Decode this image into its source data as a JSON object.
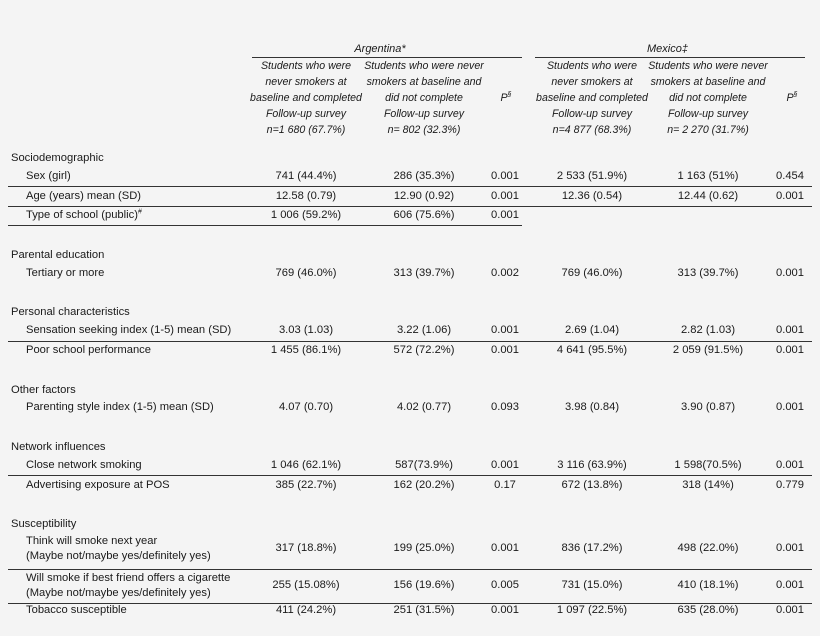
{
  "header": {
    "argentina": "Argentina*",
    "mexico": "Mexico‡",
    "arg_col1": [
      "Students who were",
      "never smokers at",
      "baseline and completed",
      "Follow-up survey",
      "n=1 680 (67.7%)"
    ],
    "arg_col2": [
      "Students who were never",
      "smokers at baseline and",
      "did not complete",
      "Follow-up survey",
      "n= 802 (32.3%)"
    ],
    "mex_col1": [
      "Students who were",
      "never smokers at",
      "baseline and completed",
      "Follow-up survey",
      "n=4 877 (68.3%)"
    ],
    "mex_col2": [
      "Students who were never",
      "smokers at baseline and",
      "did not complete",
      "Follow-up survey",
      "n= 2 270 (31.7%)"
    ],
    "p_label": "P",
    "p_sup": "§"
  },
  "sections": {
    "sociodemographic": "Sociodemographic",
    "parental_education": "Parental education",
    "personal": "Personal characteristics",
    "other": "Other factors",
    "network": "Network influences",
    "susceptibility": "Susceptibility"
  },
  "rows": [
    {
      "label": [
        "Sex (girl)"
      ],
      "sup": "",
      "a1": "741 (44.4%)",
      "a2": "286 (35.3%)",
      "ap": "0.001",
      "m1": "2 533 (51.9%)",
      "m2": "1 163 (51%)",
      "mp": "0.454"
    },
    {
      "label": [
        "Age (years) mean (SD)"
      ],
      "sup": "",
      "a1": "12.58 (0.79)",
      "a2": "12.90 (0.92)",
      "ap": "0.001",
      "m1": "12.36 (0.54)",
      "m2": "12.44 (0.62)",
      "mp": "0.001"
    },
    {
      "label": [
        "Type of school (public)"
      ],
      "sup": "#",
      "a1": "1 006 (59.2%)",
      "a2": "606 (75.6%)",
      "ap": "0.001",
      "m1": "",
      "m2": "",
      "mp": ""
    },
    {
      "label": [
        "Tertiary or more"
      ],
      "sup": "",
      "a1": "769 (46.0%)",
      "a2": "313 (39.7%)",
      "ap": "0.002",
      "m1": "769 (46.0%)",
      "m2": "313 (39.7%)",
      "mp": "0.001"
    },
    {
      "label": [
        "Sensation seeking index (1-5) mean (SD)"
      ],
      "sup": "",
      "a1": "3.03 (1.03)",
      "a2": "3.22 (1.06)",
      "ap": "0.001",
      "m1": "2.69 (1.04)",
      "m2": "2.82 (1.03)",
      "mp": "0.001"
    },
    {
      "label": [
        "Poor school performance"
      ],
      "sup": "",
      "a1": "1 455 (86.1%)",
      "a2": "572 (72.2%)",
      "ap": "0.001",
      "m1": "4 641 (95.5%)",
      "m2": "2 059 (91.5%)",
      "mp": "0.001"
    },
    {
      "label": [
        "Parenting style index (1-5) mean (SD)"
      ],
      "sup": "",
      "a1": "4.07 (0.70)",
      "a2": "4.02 (0.77)",
      "ap": "0.093",
      "m1": "3.98 (0.84)",
      "m2": "3.90 (0.87)",
      "mp": "0.001"
    },
    {
      "label": [
        "Close network smoking"
      ],
      "sup": "",
      "a1": "1 046 (62.1%)",
      "a2": "587(73.9%)",
      "ap": "0.001",
      "m1": "3 116 (63.9%)",
      "m2": "1 598(70.5%)",
      "mp": "0.001"
    },
    {
      "label": [
        "Advertising exposure at POS"
      ],
      "sup": "",
      "a1": "385 (22.7%)",
      "a2": "162 (20.2%)",
      "ap": "0.17",
      "m1": "672 (13.8%)",
      "m2": "318 (14%)",
      "mp": "0.779"
    },
    {
      "label": [
        "Think will smoke next year",
        "(Maybe not/maybe yes/definitely yes)"
      ],
      "sup": "",
      "a1": "317 (18.8%)",
      "a2": "199 (25.0%)",
      "ap": "0.001",
      "m1": "836 (17.2%)",
      "m2": "498 (22.0%)",
      "mp": "0.001"
    },
    {
      "label": [
        "Will smoke if best friend offers a cigarette",
        "(Maybe not/maybe yes/definitely yes)"
      ],
      "sup": "",
      "a1": "255 (15.08%)",
      "a2": "156 (19.6%)",
      "ap": "0.005",
      "m1": "731 (15.0%)",
      "m2": "410 (18.1%)",
      "mp": "0.001"
    },
    {
      "label": [
        "Tobacco susceptible"
      ],
      "sup": "",
      "a1": "411 (24.2%)",
      "a2": "251 (31.5%)",
      "ap": "0.001",
      "m1": "1 097 (22.5%)",
      "m2": "635 (28.0%)",
      "mp": "0.001"
    }
  ]
}
